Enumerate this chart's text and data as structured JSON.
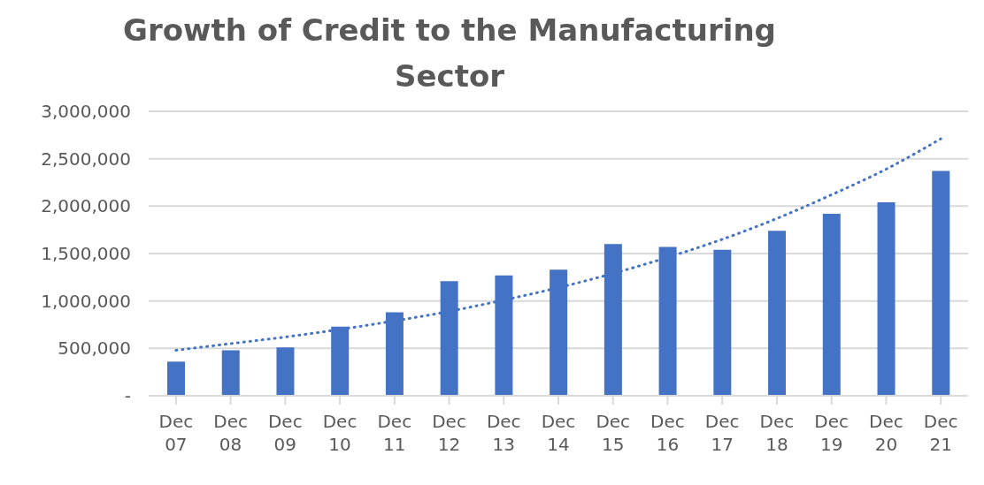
{
  "chart_data": {
    "type": "bar",
    "title": "Growth of Credit to the Manufacturing Sector",
    "categories": [
      "Dec 07",
      "Dec 08",
      "Dec 09",
      "Dec 10",
      "Dec 11",
      "Dec 12",
      "Dec 13",
      "Dec 14",
      "Dec 15",
      "Dec 16",
      "Dec 17",
      "Dec 18",
      "Dec 19",
      "Dec 20",
      "Dec 21"
    ],
    "series": [
      {
        "color": "#4472c4",
        "values": [
          360000,
          480000,
          510000,
          730000,
          880000,
          1210000,
          1270000,
          1330000,
          1600000,
          1570000,
          1540000,
          1740000,
          1920000,
          2040000,
          2370000
        ]
      },
      {
        "type": "line",
        "color": "#4472c4",
        "line_style": "dotted",
        "marker": "none",
        "values": [
          480000,
          550000,
          620000,
          700000,
          790000,
          890000,
          1010000,
          1140000,
          1290000,
          1460000,
          1650000,
          1870000,
          2120000,
          2390000,
          2710000
        ]
      }
    ],
    "ylim": [
      0,
      3000000
    ],
    "yticks": [
      {
        "value": 0,
        "label": "-"
      },
      {
        "value": 500000,
        "label": "500,000"
      },
      {
        "value": 1000000,
        "label": "1,000,000"
      },
      {
        "value": 1500000,
        "label": "1,500,000"
      },
      {
        "value": 2000000,
        "label": "2,000,000"
      },
      {
        "value": 2500000,
        "label": "2,500,000"
      },
      {
        "value": 3000000,
        "label": "3,000,000"
      }
    ],
    "grid": "y",
    "legend": false
  }
}
